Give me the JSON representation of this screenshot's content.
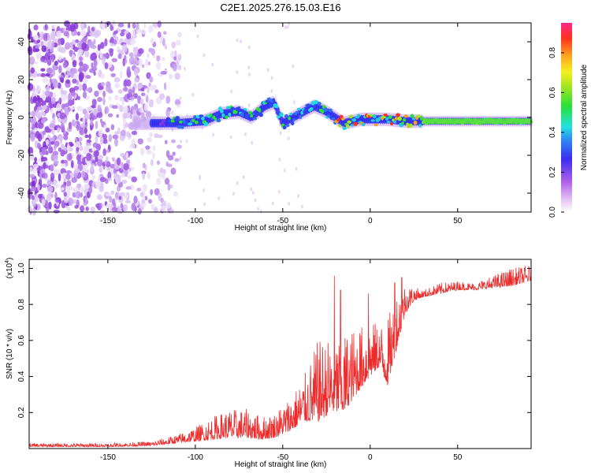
{
  "title": "C2E1.2025.276.15.03.E16",
  "chart_data": [
    {
      "type": "heatmap",
      "xlabel": "Height of straight line (km)",
      "ylabel": "Frequency (Hz)",
      "xlim": [
        -195,
        92
      ],
      "ylim": [
        -50,
        50
      ],
      "xticks": [
        -150,
        -100,
        -50,
        0,
        50
      ],
      "yticks": [
        -40,
        -20,
        0,
        20,
        40
      ],
      "ridge": {
        "description": "bright doppler ridge near 0 Hz",
        "points": [
          [
            -130,
            -3
          ],
          [
            -110,
            -3
          ],
          [
            -95,
            -2
          ],
          [
            -85,
            2
          ],
          [
            -75,
            3
          ],
          [
            -68,
            0
          ],
          [
            -60,
            6
          ],
          [
            -55,
            8
          ],
          [
            -50,
            -3
          ],
          [
            -40,
            2
          ],
          [
            -32,
            6
          ],
          [
            -25,
            3
          ],
          [
            -15,
            -3
          ],
          [
            -5,
            -1
          ],
          [
            10,
            -1
          ],
          [
            20,
            -2
          ],
          [
            30,
            -2
          ],
          [
            60,
            -2
          ],
          [
            92,
            -2
          ]
        ]
      }
    },
    {
      "type": "colorbar",
      "label": "Normalized spectral amplitude",
      "range": [
        0.0,
        0.95
      ],
      "ticks": [
        0.0,
        0.2,
        0.4,
        0.6,
        0.8
      ],
      "tick_labels": [
        "0.0",
        "0.2",
        "0.4",
        "0.6",
        "0.8"
      ]
    },
    {
      "type": "line",
      "color": "#ee2a2a",
      "xlabel": "Height of straight line (km)",
      "ylabel": "SNR (10 * v/v)",
      "exponent_label": "(x10",
      "exponent_power": "4",
      "exponent_close": ")",
      "xlim": [
        -195,
        92
      ],
      "ylim": [
        0,
        1.05
      ],
      "xticks": [
        -150,
        -100,
        -50,
        0,
        50
      ],
      "yticks": [
        0.2,
        0.4,
        0.6,
        0.8,
        1.0
      ],
      "ytick_labels": [
        "0.2",
        "0.4",
        "0.6",
        "0.8",
        "1.0"
      ],
      "envelope": {
        "x": [
          -195,
          -150,
          -125,
          -110,
          -100,
          -90,
          -80,
          -70,
          -62,
          -55,
          -45,
          -38,
          -30,
          -22,
          -15,
          -8,
          0,
          5,
          10,
          15,
          20,
          25,
          30,
          40,
          50,
          60,
          70,
          80,
          92
        ],
        "base": [
          0.01,
          0.01,
          0.015,
          0.03,
          0.04,
          0.05,
          0.06,
          0.06,
          0.05,
          0.06,
          0.1,
          0.15,
          0.15,
          0.2,
          0.2,
          0.3,
          0.4,
          0.45,
          0.35,
          0.55,
          0.75,
          0.82,
          0.84,
          0.86,
          0.88,
          0.88,
          0.89,
          0.9,
          0.93
        ],
        "top": [
          0.03,
          0.03,
          0.04,
          0.08,
          0.12,
          0.18,
          0.22,
          0.22,
          0.18,
          0.2,
          0.3,
          0.4,
          0.6,
          0.62,
          0.65,
          0.68,
          0.7,
          0.7,
          0.72,
          0.88,
          0.92,
          0.9,
          0.88,
          0.92,
          0.93,
          0.92,
          0.96,
          1.0,
          1.02
        ]
      },
      "spikes": [
        [
          -20.5,
          0.96
        ],
        [
          -17,
          0.88
        ],
        [
          -1,
          0.86
        ],
        [
          14,
          0.92
        ],
        [
          18,
          0.95
        ]
      ]
    }
  ]
}
